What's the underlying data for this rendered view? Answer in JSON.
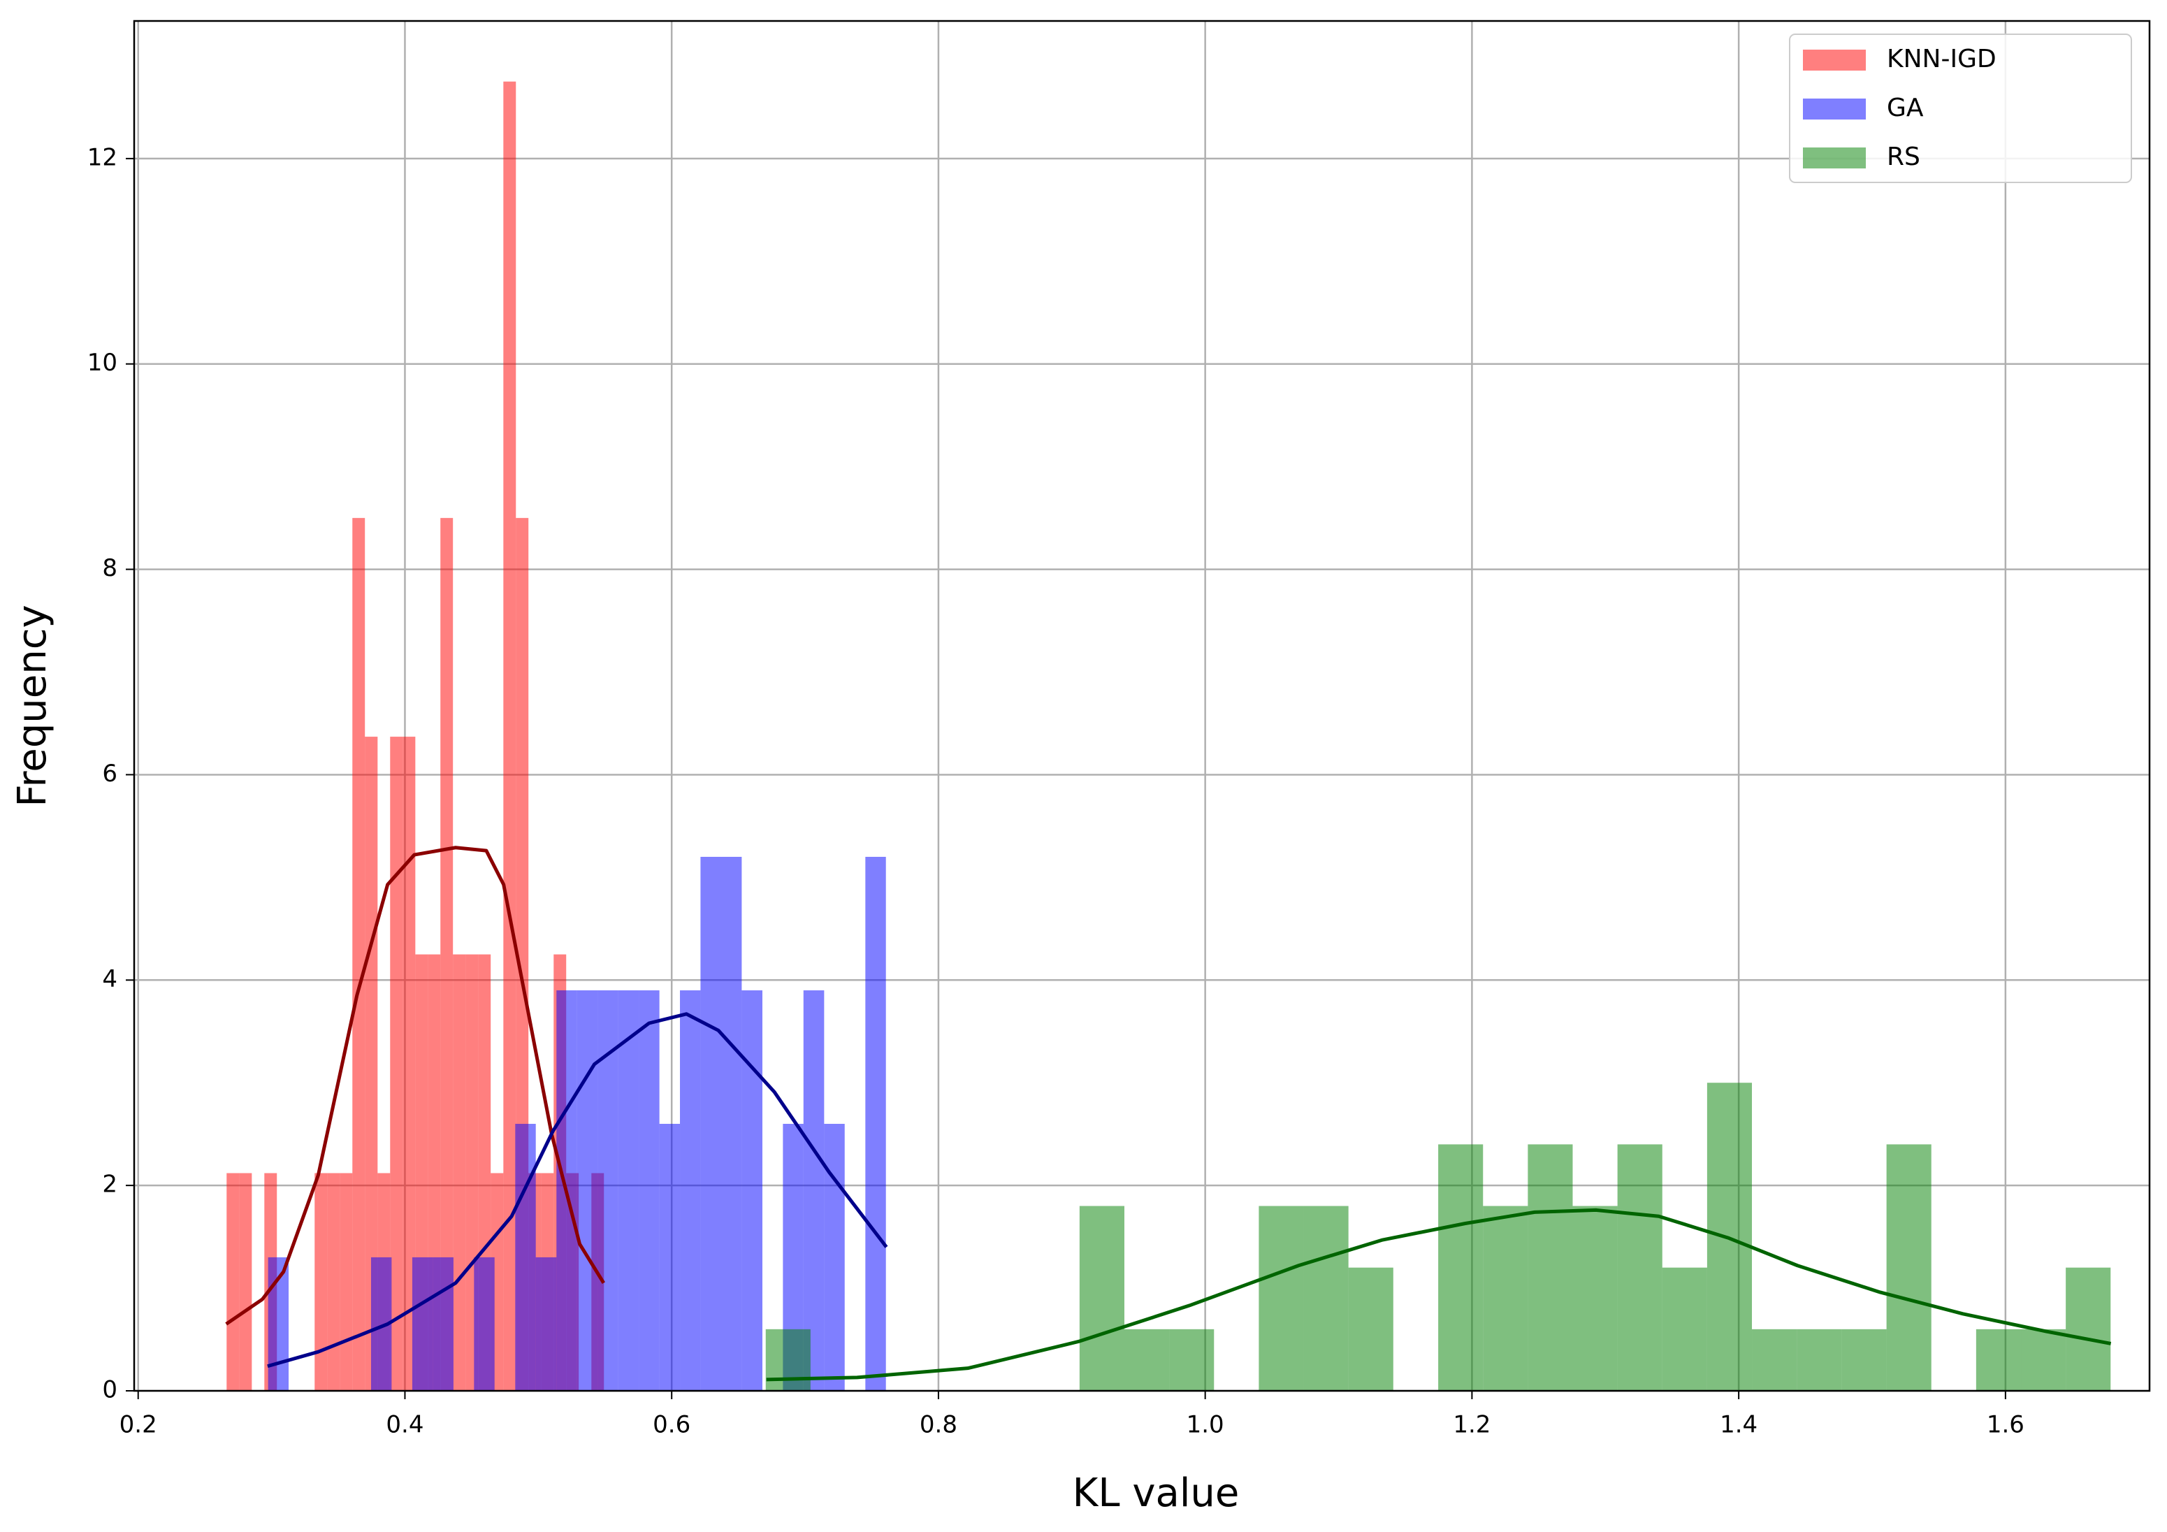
{
  "chart_data": {
    "type": "histogram",
    "xlabel": "KL value",
    "ylabel": "Frequency",
    "xlim": [
      0.197,
      1.708
    ],
    "ylim": [
      0,
      13.34
    ],
    "xticks": [
      0.2,
      0.4,
      0.6,
      0.8,
      {
        "value": 1.0,
        "label": "1.0"
      },
      1.2,
      1.4,
      1.6
    ],
    "yticks": [
      0,
      2,
      4,
      6,
      8,
      10,
      12
    ],
    "grid": true,
    "legend": "upper right",
    "alpha": 0.5,
    "series": [
      {
        "name": "KNN-IGD",
        "color": "#ff0000",
        "bins": [
          0.2663,
          0.2757,
          0.2852,
          0.2946,
          0.304,
          0.3135,
          0.3229,
          0.3323,
          0.3417,
          0.3512,
          0.3606,
          0.37,
          0.3795,
          0.3889,
          0.3983,
          0.4078,
          0.4172,
          0.4266,
          0.436,
          0.4455,
          0.4549,
          0.4643,
          0.4738,
          0.4832,
          0.4926,
          0.5021,
          0.5115,
          0.5209,
          0.5303,
          0.5398,
          0.5492
        ],
        "values": [
          2.12,
          2.12,
          0,
          2.12,
          0,
          0,
          0,
          2.12,
          2.12,
          2.12,
          8.5,
          6.37,
          2.12,
          6.37,
          6.37,
          4.25,
          4.25,
          8.5,
          4.25,
          4.25,
          4.25,
          2.12,
          12.75,
          8.5,
          2.12,
          2.12,
          4.25,
          2.12,
          0,
          2.12
        ],
        "kde": {
          "color": "#8b0000",
          "x": [
            0.266,
            0.293,
            0.309,
            0.335,
            0.364,
            0.387,
            0.407,
            0.438,
            0.461,
            0.474,
            0.49,
            0.51,
            0.531,
            0.549
          ],
          "y": [
            0.65,
            0.89,
            1.16,
            2.1,
            3.85,
            4.93,
            5.22,
            5.29,
            5.26,
            4.93,
            3.85,
            2.5,
            1.43,
            1.05
          ]
        }
      },
      {
        "name": "GA",
        "color": "#0000ff",
        "bins": [
          0.2974,
          0.3128,
          0.3283,
          0.3437,
          0.3592,
          0.3746,
          0.39,
          0.4055,
          0.4209,
          0.4364,
          0.4518,
          0.4672,
          0.4827,
          0.4981,
          0.5136,
          0.529,
          0.5444,
          0.5599,
          0.5753,
          0.5908,
          0.6062,
          0.6216,
          0.6371,
          0.6525,
          0.668,
          0.6834,
          0.6988,
          0.7143,
          0.7297,
          0.7452,
          0.7606
        ],
        "values": [
          1.3,
          0,
          0,
          0,
          0,
          1.3,
          0,
          1.3,
          1.3,
          0,
          1.3,
          0,
          2.6,
          1.3,
          3.9,
          3.9,
          3.9,
          3.9,
          3.9,
          2.6,
          3.9,
          5.2,
          5.2,
          3.9,
          0,
          2.6,
          3.9,
          2.6,
          0,
          5.2
        ],
        "kde": {
          "color": "#00008b",
          "x": [
            0.297,
            0.335,
            0.387,
            0.438,
            0.48,
            0.511,
            0.542,
            0.583,
            0.611,
            0.635,
            0.677,
            0.718,
            0.761
          ],
          "y": [
            0.24,
            0.38,
            0.65,
            1.05,
            1.7,
            2.53,
            3.18,
            3.58,
            3.67,
            3.51,
            2.91,
            2.13,
            1.4
          ]
        }
      },
      {
        "name": "RS",
        "color": "#008000",
        "bins": [
          0.6705,
          0.7041,
          0.7377,
          0.7713,
          0.8049,
          0.8386,
          0.8722,
          0.9058,
          0.9394,
          0.973,
          1.0066,
          1.0402,
          1.0738,
          1.1074,
          1.141,
          1.1747,
          1.2083,
          1.2419,
          1.2755,
          1.3091,
          1.3427,
          1.3763,
          1.4099,
          1.4435,
          1.4771,
          1.5108,
          1.5444,
          1.578,
          1.6116,
          1.6452,
          1.6788
        ],
        "values": [
          0.6,
          0,
          0,
          0,
          0,
          0,
          0,
          1.8,
          0.6,
          0.6,
          0,
          1.8,
          1.8,
          1.2,
          0,
          2.4,
          1.8,
          2.4,
          1.8,
          2.4,
          1.2,
          3.0,
          0.6,
          0.6,
          0.6,
          2.4,
          0,
          0.6,
          0.6,
          1.2
        ],
        "kde": {
          "color": "#006400",
          "x": [
            0.671,
            0.739,
            0.822,
            0.905,
            0.988,
            1.07,
            1.133,
            1.195,
            1.247,
            1.293,
            1.34,
            1.392,
            1.444,
            1.506,
            1.568,
            1.63,
            1.679
          ],
          "y": [
            0.11,
            0.13,
            0.22,
            0.48,
            0.83,
            1.22,
            1.47,
            1.63,
            1.74,
            1.76,
            1.7,
            1.49,
            1.22,
            0.96,
            0.75,
            0.58,
            0.46
          ]
        }
      }
    ]
  }
}
